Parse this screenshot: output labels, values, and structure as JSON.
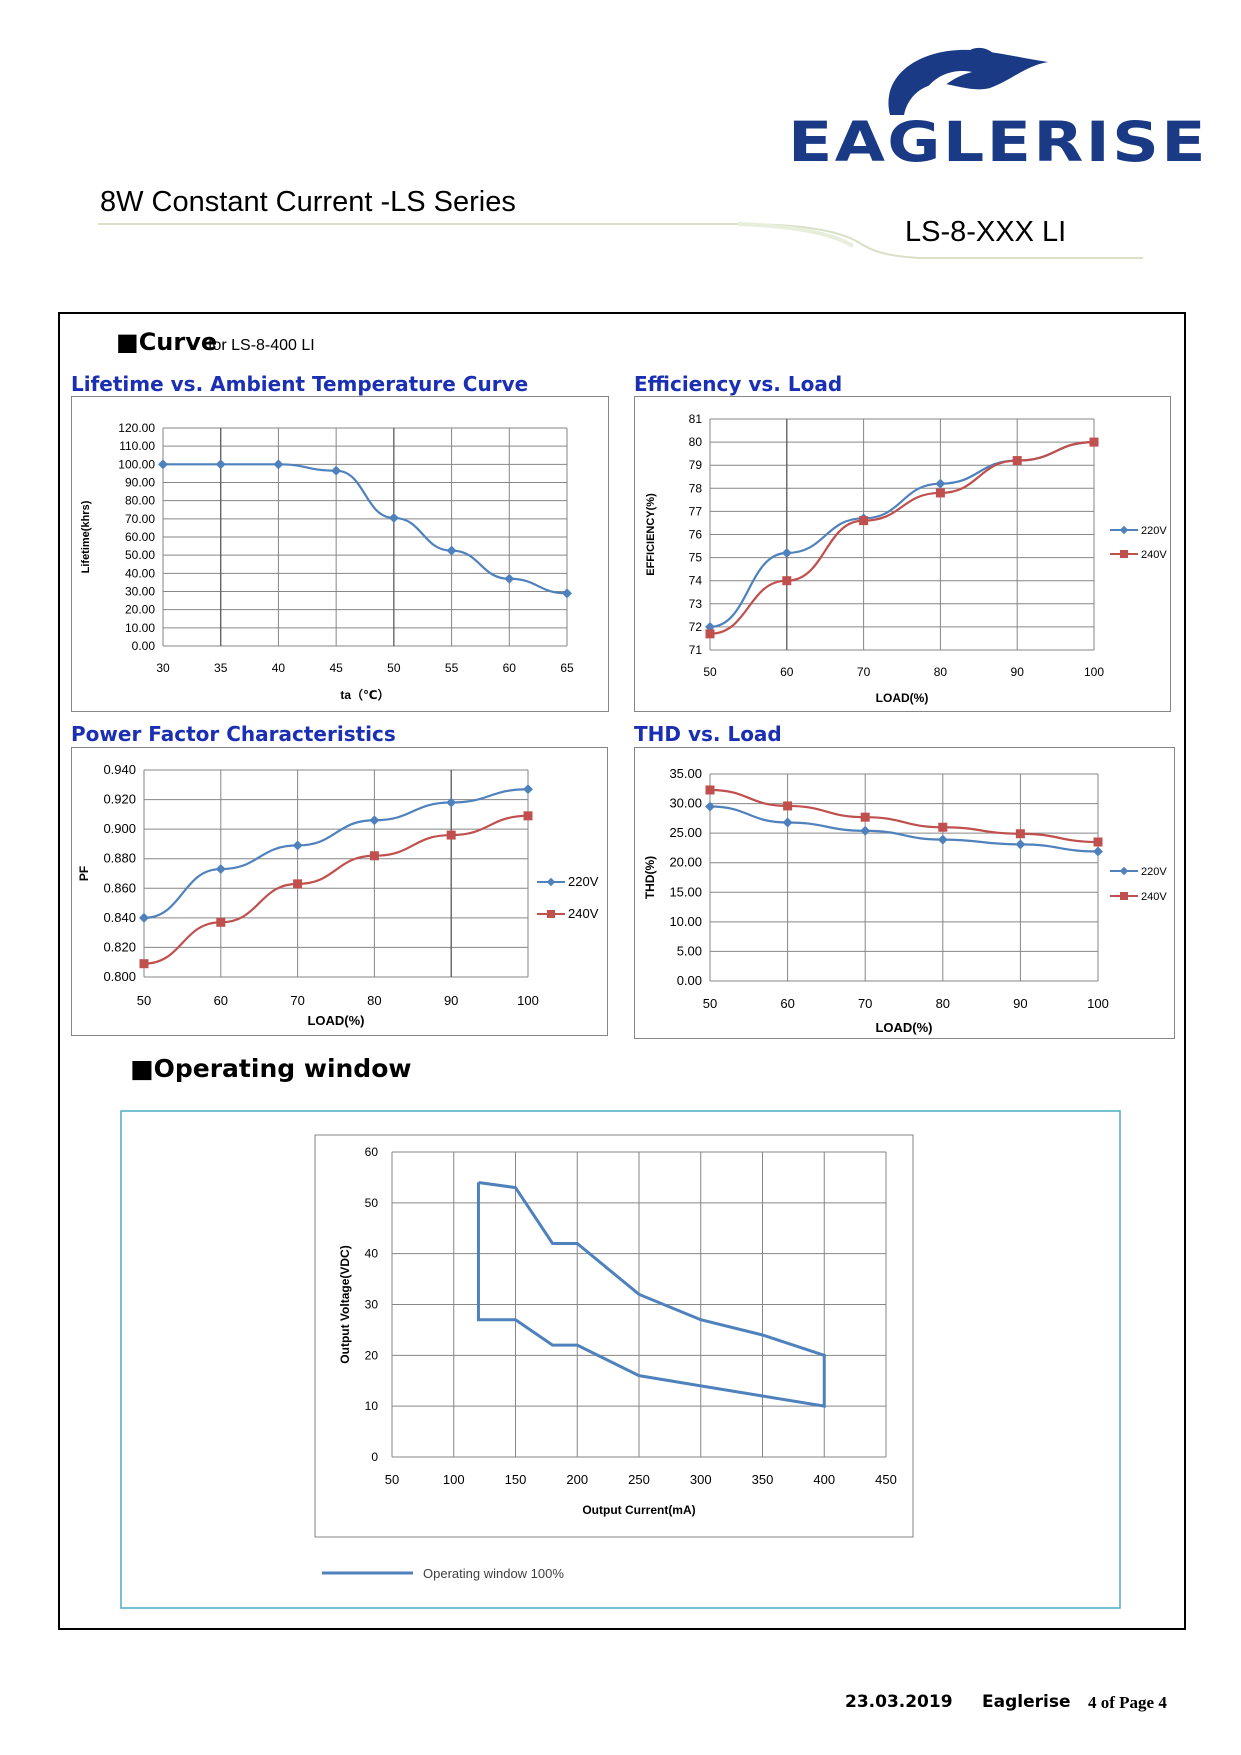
{
  "header": {
    "logo_text": "EAGLERISE",
    "series_title": "8W Constant Current -LS Series",
    "model": "LS-8-XXX LI"
  },
  "section": {
    "curve_label": "Curve",
    "curve_sub": "for LS-8-400 LI",
    "operating_window_label": "Operating window"
  },
  "colors": {
    "series1": "#4f81bd",
    "series2": "#c0504d",
    "title": "#1a2fb2",
    "brand": "#1b3a86",
    "frame_cyan": "#4bacc6"
  },
  "chart_data": [
    {
      "type": "line",
      "title": "Lifetime vs. Ambient Temperature Curve",
      "xlabel": "ta（℃）",
      "ylabel": "Lifetime(khrs)",
      "x": [
        30,
        35,
        40,
        45,
        50,
        55,
        60,
        65
      ],
      "xticks": [
        "30",
        "35",
        "40",
        "45",
        "50",
        "55",
        "60",
        "65"
      ],
      "yticks": [
        "0.00",
        "10.00",
        "20.00",
        "30.00",
        "40.00",
        "50.00",
        "60.00",
        "70.00",
        "80.00",
        "90.00",
        "100.00",
        "110.00",
        "120.00"
      ],
      "ylim": [
        0,
        120
      ],
      "grid": true,
      "series": [
        {
          "values": [
            100,
            100,
            100,
            96.5,
            70.5,
            52.5,
            37,
            29
          ]
        }
      ]
    },
    {
      "type": "line",
      "title": "Efficiency vs. Load",
      "xlabel": "LOAD(%)",
      "ylabel": "EFFICIENCY(%)",
      "x": [
        50,
        60,
        70,
        80,
        90,
        100
      ],
      "xticks": [
        "50",
        "60",
        "70",
        "80",
        "90",
        "100"
      ],
      "yticks": [
        "71",
        "72",
        "73",
        "74",
        "75",
        "76",
        "77",
        "78",
        "79",
        "80",
        "81"
      ],
      "ylim": [
        71,
        81
      ],
      "legend": "right",
      "series": [
        {
          "name": "220V",
          "values": [
            72,
            75.2,
            76.7,
            78.2,
            79.2,
            80
          ]
        },
        {
          "name": "240V",
          "values": [
            71.7,
            74,
            76.6,
            77.8,
            79.2,
            80
          ]
        }
      ]
    },
    {
      "type": "line",
      "title": "Power Factor Characteristics",
      "xlabel": "LOAD(%)",
      "ylabel": "PF",
      "x": [
        50,
        60,
        70,
        80,
        90,
        100
      ],
      "xticks": [
        "50",
        "60",
        "70",
        "80",
        "90",
        "100"
      ],
      "yticks": [
        "0.800",
        "0.820",
        "0.840",
        "0.860",
        "0.880",
        "0.900",
        "0.920",
        "0.940"
      ],
      "ylim": [
        0.8,
        0.94
      ],
      "legend": "right",
      "series": [
        {
          "name": "220V",
          "values": [
            0.84,
            0.873,
            0.889,
            0.906,
            0.918,
            0.927
          ]
        },
        {
          "name": "240V",
          "values": [
            0.809,
            0.837,
            0.863,
            0.882,
            0.896,
            0.909
          ]
        }
      ]
    },
    {
      "type": "line",
      "title": "THD vs. Load",
      "xlabel": "LOAD(%)",
      "ylabel": "THD(%)",
      "x": [
        50,
        60,
        70,
        80,
        90,
        100
      ],
      "xticks": [
        "50",
        "60",
        "70",
        "80",
        "90",
        "100"
      ],
      "yticks": [
        "0.00",
        "5.00",
        "10.00",
        "15.00",
        "20.00",
        "25.00",
        "30.00",
        "35.00"
      ],
      "ylim": [
        0,
        35
      ],
      "legend": "right",
      "series": [
        {
          "name": "220V",
          "values": [
            29.5,
            26.8,
            25.4,
            23.9,
            23.1,
            21.9
          ]
        },
        {
          "name": "240V",
          "values": [
            32.3,
            29.6,
            27.7,
            26,
            24.9,
            23.5
          ]
        }
      ]
    },
    {
      "type": "line",
      "title": "",
      "xlabel": "Output Current(mA)",
      "ylabel": "Output Voltage(VDC)",
      "xlim": [
        50,
        450
      ],
      "ylim": [
        0,
        60
      ],
      "xticks": [
        "50",
        "100",
        "150",
        "200",
        "250",
        "300",
        "350",
        "400",
        "450"
      ],
      "yticks": [
        "0",
        "10",
        "20",
        "30",
        "40",
        "50",
        "60"
      ],
      "legend": "bottom-left",
      "series": [
        {
          "name": "Operating window 100%",
          "x": [
            120,
            150,
            180,
            200,
            250,
            300,
            350,
            400,
            400,
            350,
            300,
            250,
            200,
            180,
            150,
            120,
            120
          ],
          "values": [
            54,
            53,
            42,
            42,
            32,
            27,
            24,
            20,
            10,
            12,
            14,
            16,
            22,
            22,
            27,
            27,
            54
          ]
        }
      ]
    }
  ],
  "footer": {
    "date": "23.03.2019",
    "brand": "Eaglerise",
    "page": "4 of Page 4"
  }
}
